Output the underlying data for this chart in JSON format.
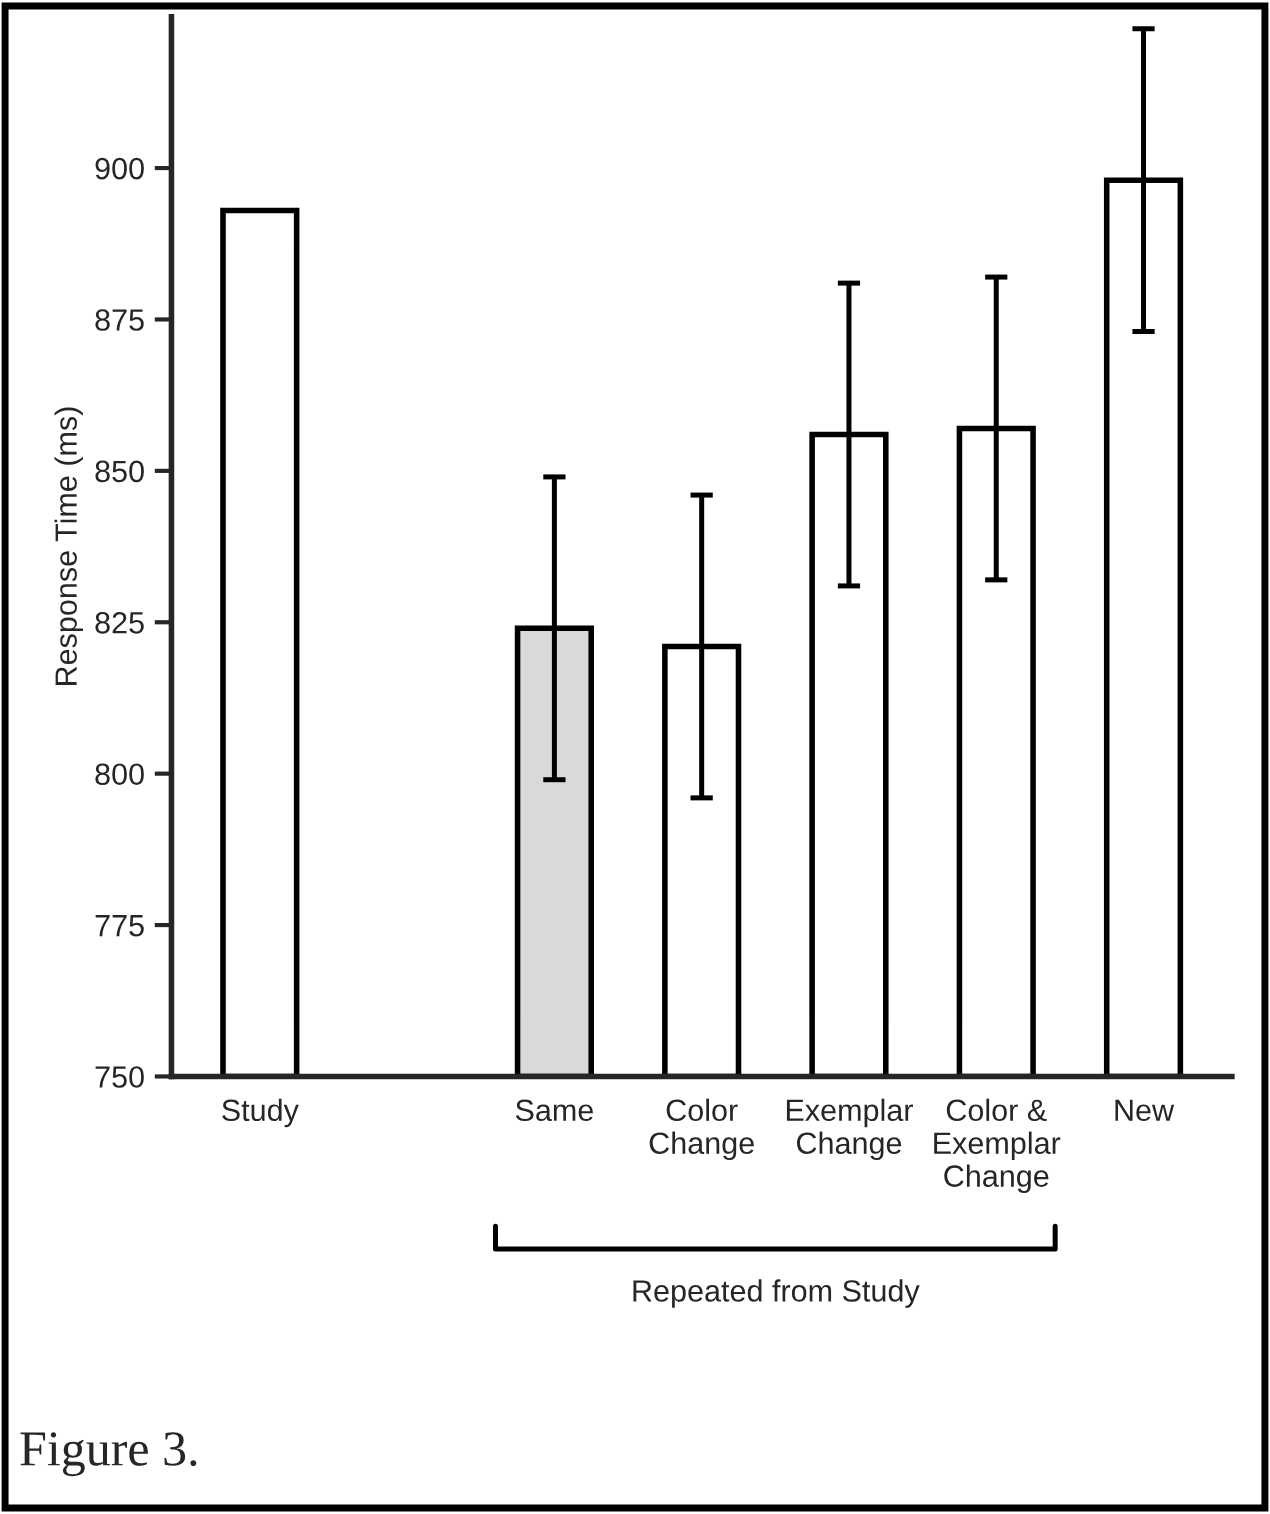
{
  "chart_data": {
    "type": "bar",
    "ylabel": "Response Time (ms)",
    "categories": [
      "Study",
      null,
      "Same",
      "Color\nChange",
      "Exemplar\nChange",
      "Color &\nExemplar\nChange",
      "New"
    ],
    "values": [
      893,
      null,
      824,
      821,
      856,
      857,
      898
    ],
    "errors": [
      null,
      null,
      25,
      25,
      25,
      25,
      25
    ],
    "colors": [
      "#ffffff",
      "#ffffff",
      "#d9d9d9",
      "#ffffff",
      "#ffffff",
      "#ffffff",
      "#ffffff"
    ],
    "ylim": [
      750,
      925
    ],
    "yticks": [
      750,
      775,
      800,
      825,
      850,
      875,
      900
    ],
    "grid": false,
    "legend": false,
    "annotations": [
      "Repeated from Study",
      "Figure 3."
    ]
  }
}
